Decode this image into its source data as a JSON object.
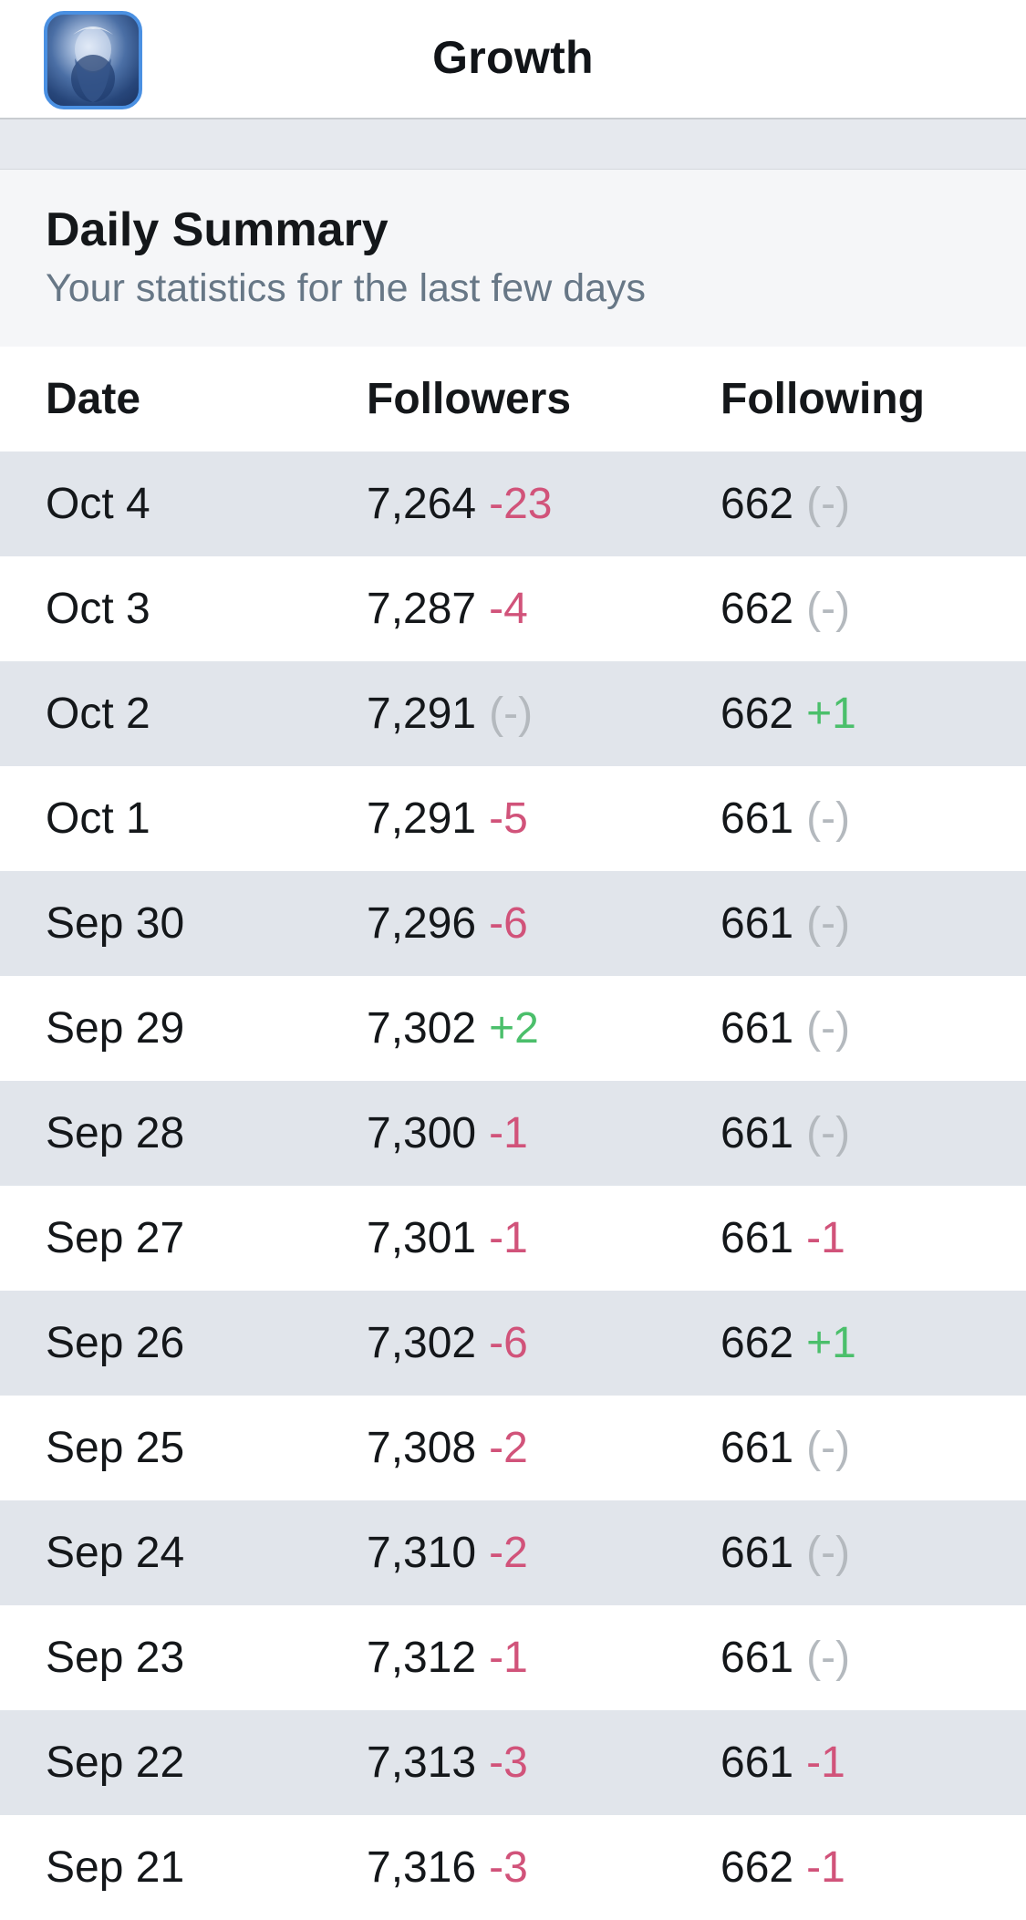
{
  "navbar": {
    "title": "Growth",
    "avatar_icon": "profile-avatar-icon"
  },
  "summary": {
    "title": "Daily Summary",
    "subtitle": "Your statistics for the last few days"
  },
  "table": {
    "headers": {
      "date": "Date",
      "followers": "Followers",
      "following": "Following"
    },
    "rows": [
      {
        "date": "Oct 4",
        "followers": "7,264",
        "followers_delta": "-23",
        "followers_kind": "neg",
        "following": "662",
        "following_delta": "(-)",
        "following_kind": "none"
      },
      {
        "date": "Oct 3",
        "followers": "7,287",
        "followers_delta": "-4",
        "followers_kind": "neg",
        "following": "662",
        "following_delta": "(-)",
        "following_kind": "none"
      },
      {
        "date": "Oct 2",
        "followers": "7,291",
        "followers_delta": "(-)",
        "followers_kind": "none",
        "following": "662",
        "following_delta": "+1",
        "following_kind": "pos"
      },
      {
        "date": "Oct 1",
        "followers": "7,291",
        "followers_delta": "-5",
        "followers_kind": "neg",
        "following": "661",
        "following_delta": "(-)",
        "following_kind": "none"
      },
      {
        "date": "Sep 30",
        "followers": "7,296",
        "followers_delta": "-6",
        "followers_kind": "neg",
        "following": "661",
        "following_delta": "(-)",
        "following_kind": "none"
      },
      {
        "date": "Sep 29",
        "followers": "7,302",
        "followers_delta": "+2",
        "followers_kind": "pos",
        "following": "661",
        "following_delta": "(-)",
        "following_kind": "none"
      },
      {
        "date": "Sep 28",
        "followers": "7,300",
        "followers_delta": "-1",
        "followers_kind": "neg",
        "following": "661",
        "following_delta": "(-)",
        "following_kind": "none"
      },
      {
        "date": "Sep 27",
        "followers": "7,301",
        "followers_delta": "-1",
        "followers_kind": "neg",
        "following": "661",
        "following_delta": "-1",
        "following_kind": "neg"
      },
      {
        "date": "Sep 26",
        "followers": "7,302",
        "followers_delta": "-6",
        "followers_kind": "neg",
        "following": "662",
        "following_delta": "+1",
        "following_kind": "pos"
      },
      {
        "date": "Sep 25",
        "followers": "7,308",
        "followers_delta": "-2",
        "followers_kind": "neg",
        "following": "661",
        "following_delta": "(-)",
        "following_kind": "none"
      },
      {
        "date": "Sep 24",
        "followers": "7,310",
        "followers_delta": "-2",
        "followers_kind": "neg",
        "following": "661",
        "following_delta": "(-)",
        "following_kind": "none"
      },
      {
        "date": "Sep 23",
        "followers": "7,312",
        "followers_delta": "-1",
        "followers_kind": "neg",
        "following": "661",
        "following_delta": "(-)",
        "following_kind": "none"
      },
      {
        "date": "Sep 22",
        "followers": "7,313",
        "followers_delta": "-3",
        "followers_kind": "neg",
        "following": "661",
        "following_delta": "-1",
        "following_kind": "neg"
      },
      {
        "date": "Sep 21",
        "followers": "7,316",
        "followers_delta": "-3",
        "followers_kind": "neg",
        "following": "662",
        "following_delta": "-1",
        "following_kind": "neg"
      }
    ]
  },
  "colors": {
    "negative": "#d1537a",
    "positive": "#4bbf6b",
    "neutral": "#b4b9be",
    "row_alt": "#e1e5eb",
    "subtitle": "#677786"
  }
}
